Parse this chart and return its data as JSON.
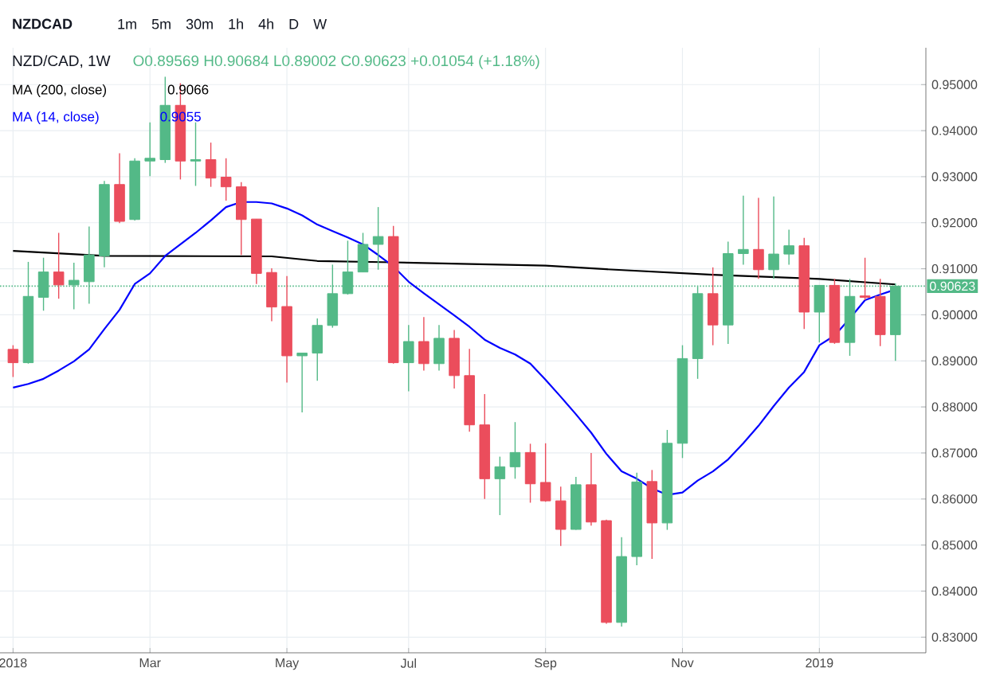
{
  "chart_data": {
    "type": "candlestick",
    "title": "NZDCAD",
    "subtitle": "NZD/CAD, 1W",
    "annotations": [
      "1m",
      "5m",
      "30m",
      "1h",
      "4h",
      "D",
      "W",
      "O0.89569 H0.90684 L0.89002 C0.90623 +0.01054 (+1.18%)",
      "0.9066",
      "0.9055"
    ],
    "x": [
      "2018-01-01",
      "2018-01-08",
      "2018-01-15",
      "2018-01-22",
      "2018-01-29",
      "2018-02-05",
      "2018-02-12",
      "2018-02-19",
      "2018-02-26",
      "2018-03-05",
      "2018-03-12",
      "2018-03-19",
      "2018-03-26",
      "2018-04-02",
      "2018-04-09",
      "2018-04-16",
      "2018-04-23",
      "2018-04-30",
      "2018-05-07",
      "2018-05-14",
      "2018-05-21",
      "2018-05-28",
      "2018-06-04",
      "2018-06-11",
      "2018-06-18",
      "2018-06-25",
      "2018-07-02",
      "2018-07-09",
      "2018-07-16",
      "2018-07-23",
      "2018-07-30",
      "2018-08-06",
      "2018-08-13",
      "2018-08-20",
      "2018-08-27",
      "2018-09-03",
      "2018-09-10",
      "2018-09-17",
      "2018-09-24",
      "2018-10-01",
      "2018-10-08",
      "2018-10-15",
      "2018-10-22",
      "2018-10-29",
      "2018-11-05",
      "2018-11-12",
      "2018-11-19",
      "2018-11-26",
      "2018-12-03",
      "2018-12-10",
      "2018-12-17",
      "2018-12-24",
      "2018-12-31",
      "2019-01-07",
      "2019-01-14",
      "2019-01-21",
      "2019-01-28",
      "2019-02-04",
      "2019-02-11"
    ],
    "ohlc": [
      [
        0.8925,
        0.8934,
        0.8865,
        0.8896
      ],
      [
        0.8896,
        0.9115,
        0.8894,
        0.904
      ],
      [
        0.9038,
        0.9124,
        0.9009,
        0.9093
      ],
      [
        0.9093,
        0.9178,
        0.9035,
        0.9065
      ],
      [
        0.9065,
        0.9113,
        0.9012,
        0.9075
      ],
      [
        0.9072,
        0.9192,
        0.9024,
        0.913
      ],
      [
        0.9128,
        0.9291,
        0.9103,
        0.9283
      ],
      [
        0.9283,
        0.9351,
        0.9199,
        0.9203
      ],
      [
        0.9207,
        0.934,
        0.9205,
        0.9334
      ],
      [
        0.9334,
        0.9418,
        0.9301,
        0.934
      ],
      [
        0.9337,
        0.9517,
        0.933,
        0.9455
      ],
      [
        0.9455,
        0.9503,
        0.9294,
        0.9334
      ],
      [
        0.9334,
        0.9418,
        0.928,
        0.9337
      ],
      [
        0.9337,
        0.9374,
        0.9278,
        0.9297
      ],
      [
        0.9299,
        0.934,
        0.9248,
        0.9278
      ],
      [
        0.9278,
        0.9288,
        0.913,
        0.9207
      ],
      [
        0.9208,
        0.9208,
        0.9067,
        0.909
      ],
      [
        0.9092,
        0.9101,
        0.8986,
        0.9017
      ],
      [
        0.9018,
        0.9084,
        0.8853,
        0.8911
      ],
      [
        0.8911,
        0.8917,
        0.8788,
        0.8917
      ],
      [
        0.8917,
        0.8992,
        0.8857,
        0.8977
      ],
      [
        0.8977,
        0.9109,
        0.8972,
        0.9046
      ],
      [
        0.9046,
        0.9161,
        0.9044,
        0.9093
      ],
      [
        0.9093,
        0.9178,
        0.9093,
        0.9153
      ],
      [
        0.9153,
        0.9234,
        0.9098,
        0.917
      ],
      [
        0.917,
        0.9193,
        0.8894,
        0.8896
      ],
      [
        0.8896,
        0.8978,
        0.8834,
        0.8942
      ],
      [
        0.8942,
        0.8995,
        0.8879,
        0.8894
      ],
      [
        0.8894,
        0.8978,
        0.8879,
        0.8949
      ],
      [
        0.8949,
        0.8967,
        0.884,
        0.8868
      ],
      [
        0.8868,
        0.8926,
        0.8746,
        0.8761
      ],
      [
        0.8761,
        0.8828,
        0.86,
        0.8644
      ],
      [
        0.8644,
        0.8692,
        0.8565,
        0.867
      ],
      [
        0.867,
        0.8767,
        0.8644,
        0.8701
      ],
      [
        0.8701,
        0.872,
        0.8592,
        0.8633
      ],
      [
        0.8636,
        0.8721,
        0.8594,
        0.8596
      ],
      [
        0.8596,
        0.8627,
        0.8498,
        0.8534
      ],
      [
        0.8534,
        0.8648,
        0.8533,
        0.8631
      ],
      [
        0.8631,
        0.87,
        0.8542,
        0.855
      ],
      [
        0.8553,
        0.8555,
        0.8329,
        0.8332
      ],
      [
        0.8332,
        0.8517,
        0.8323,
        0.8475
      ],
      [
        0.8475,
        0.8657,
        0.8456,
        0.8637
      ],
      [
        0.8638,
        0.8663,
        0.847,
        0.8548
      ],
      [
        0.8548,
        0.875,
        0.8533,
        0.8721
      ],
      [
        0.8721,
        0.8934,
        0.8689,
        0.8905
      ],
      [
        0.8905,
        0.9061,
        0.8861,
        0.9046
      ],
      [
        0.9046,
        0.9103,
        0.8934,
        0.8978
      ],
      [
        0.8978,
        0.9159,
        0.8937,
        0.9133
      ],
      [
        0.9133,
        0.9259,
        0.9109,
        0.9142
      ],
      [
        0.9142,
        0.9254,
        0.9078,
        0.9098
      ],
      [
        0.9098,
        0.9257,
        0.9078,
        0.9132
      ],
      [
        0.9132,
        0.9185,
        0.9109,
        0.915
      ],
      [
        0.915,
        0.9167,
        0.8969,
        0.9006
      ],
      [
        0.9006,
        0.9064,
        0.894,
        0.9064
      ],
      [
        0.9064,
        0.9078,
        0.8937,
        0.894
      ],
      [
        0.894,
        0.9078,
        0.8911,
        0.904
      ],
      [
        0.9041,
        0.9124,
        0.9032,
        0.9038
      ],
      [
        0.904,
        0.9078,
        0.8932,
        0.8957
      ],
      [
        0.89569,
        0.90684,
        0.89002,
        0.90623
      ]
    ],
    "colors": [
      "#eb4d5c",
      "#53b987",
      "#53b987",
      "#eb4d5c",
      "#53b987",
      "#53b987",
      "#53b987",
      "#eb4d5c",
      "#53b987",
      "#53b987",
      "#53b987",
      "#eb4d5c",
      "#53b987",
      "#eb4d5c",
      "#eb4d5c",
      "#eb4d5c",
      "#eb4d5c",
      "#eb4d5c",
      "#eb4d5c",
      "#53b987",
      "#53b987",
      "#53b987",
      "#53b987",
      "#53b987",
      "#53b987",
      "#eb4d5c",
      "#53b987",
      "#eb4d5c",
      "#53b987",
      "#eb4d5c",
      "#eb4d5c",
      "#eb4d5c",
      "#53b987",
      "#53b987",
      "#eb4d5c",
      "#eb4d5c",
      "#eb4d5c",
      "#53b987",
      "#eb4d5c",
      "#eb4d5c",
      "#53b987",
      "#53b987",
      "#eb4d5c",
      "#53b987",
      "#53b987",
      "#53b987",
      "#eb4d5c",
      "#53b987",
      "#53b987",
      "#eb4d5c",
      "#53b987",
      "#53b987",
      "#eb4d5c",
      "#53b987",
      "#eb4d5c",
      "#53b987",
      "#eb4d5c",
      "#eb4d5c",
      "#53b987"
    ],
    "series": [
      {
        "name": "MA (200, close)",
        "type": "line",
        "color": "#000000",
        "x": [
          "2018-01-01",
          "2018-02-12",
          "2018-04-30",
          "2018-05-21",
          "2018-06-25",
          "2018-09-03",
          "2018-10-01",
          "2018-11-19",
          "2019-01-07",
          "2019-02-11"
        ],
        "values": [
          0.9139,
          0.9128,
          0.9127,
          0.9117,
          0.9114,
          0.9107,
          0.9099,
          0.9087,
          0.9078,
          0.9066
        ]
      },
      {
        "name": "MA (14, close)",
        "type": "line",
        "color": "#0000ff",
        "values": [
          0.8842,
          0.885,
          0.8861,
          0.8879,
          0.8899,
          0.8925,
          0.8969,
          0.9011,
          0.9067,
          0.909,
          0.9128,
          0.9153,
          0.9178,
          0.9205,
          0.9234,
          0.9245,
          0.9245,
          0.9242,
          0.9231,
          0.9216,
          0.9196,
          0.9182,
          0.9168,
          0.9153,
          0.913,
          0.9105,
          0.9072,
          0.9047,
          0.9023,
          0.8999,
          0.8974,
          0.8946,
          0.8928,
          0.8914,
          0.8894,
          0.8859,
          0.8822,
          0.8784,
          0.8744,
          0.8698,
          0.866,
          0.8644,
          0.8623,
          0.8609,
          0.8614,
          0.864,
          0.866,
          0.8686,
          0.8721,
          0.8759,
          0.8802,
          0.8842,
          0.8876,
          0.8934,
          0.8955,
          0.8992,
          0.9032,
          0.9044,
          0.9055
        ]
      }
    ],
    "ref_lines": [
      {
        "axis": "y",
        "value": 0.90623,
        "label": "0.90623",
        "color": "#53b987",
        "line_style": "dotted"
      }
    ],
    "xlim": [
      "2017-12-26",
      "2019-02-25"
    ],
    "xticks": [
      {
        "value": "2018-01-01",
        "label": "2018"
      },
      {
        "value": "2018-03-05",
        "label": "Mar"
      },
      {
        "value": "2018-05-07",
        "label": "May"
      },
      {
        "value": "2018-07-02",
        "label": "Jul"
      },
      {
        "value": "2018-09-03",
        "label": "Sep"
      },
      {
        "value": "2018-11-05",
        "label": "Nov"
      },
      {
        "value": "2019-01-07",
        "label": "2019"
      }
    ],
    "ylim": [
      0.8266,
      0.958
    ],
    "yticks": [
      {
        "value": 0.83,
        "label": "0.83000"
      },
      {
        "value": 0.84,
        "label": "0.84000"
      },
      {
        "value": 0.85,
        "label": "0.85000"
      },
      {
        "value": 0.86,
        "label": "0.86000"
      },
      {
        "value": 0.87,
        "label": "0.87000"
      },
      {
        "value": 0.88,
        "label": "0.88000"
      },
      {
        "value": 0.89,
        "label": "0.89000"
      },
      {
        "value": 0.9,
        "label": "0.90000"
      },
      {
        "value": 0.91,
        "label": "0.91000"
      },
      {
        "value": 0.92,
        "label": "0.92000"
      },
      {
        "value": 0.93,
        "label": "0.93000"
      },
      {
        "value": 0.94,
        "label": "0.94000"
      },
      {
        "value": 0.95,
        "label": "0.95000"
      }
    ],
    "grid": true,
    "legend": "top left"
  }
}
